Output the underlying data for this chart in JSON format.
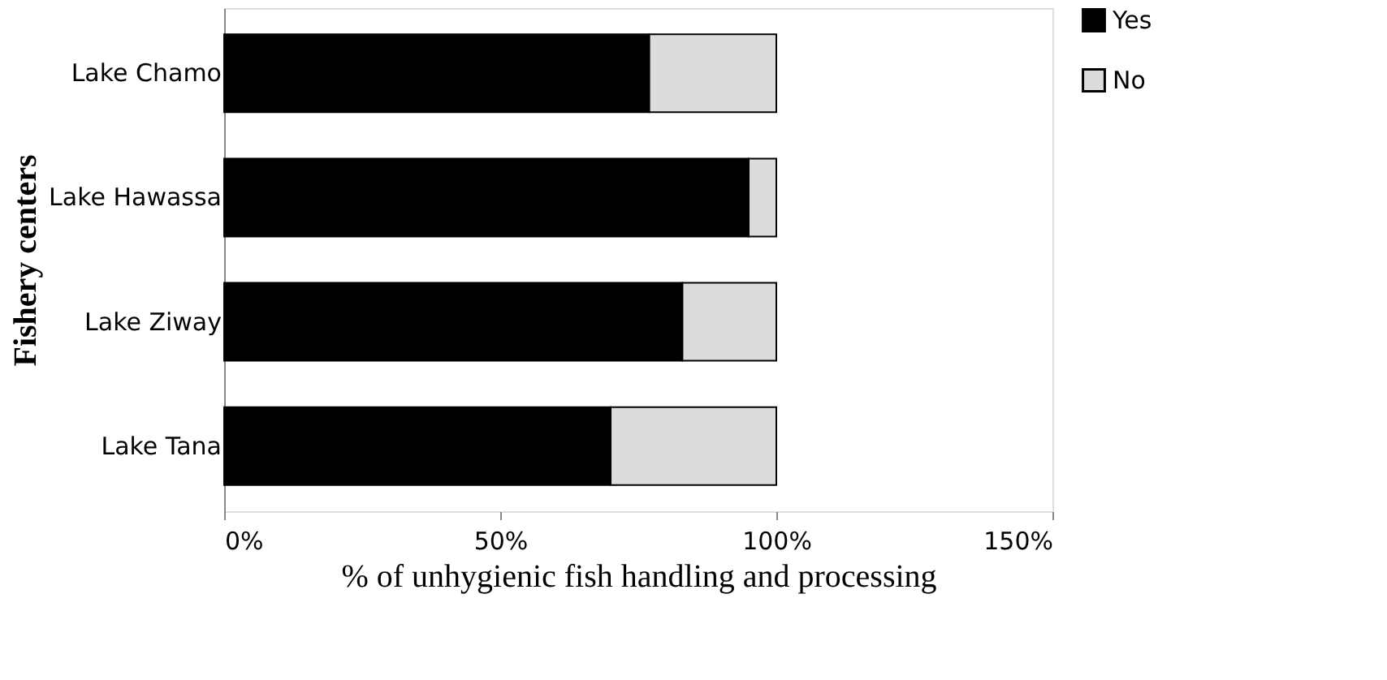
{
  "chart_data": {
    "type": "bar",
    "orientation": "horizontal",
    "stacked": true,
    "xlabel": "% of unhygienic fish handling and processing",
    "ylabel": "Fishery centers",
    "categories": [
      "Lake Chamo",
      "Lake Hawassa",
      "Lake Ziway",
      "Lake Tana"
    ],
    "series": [
      {
        "name": "Yes",
        "color": "#000000",
        "values": [
          77,
          95,
          83,
          70
        ]
      },
      {
        "name": "No",
        "color": "#dcdcdc",
        "values": [
          23,
          5,
          17,
          30
        ]
      }
    ],
    "xlim": [
      0,
      150
    ],
    "xticks": [
      {
        "value": 0,
        "label": "0%"
      },
      {
        "value": 50,
        "label": "50%"
      },
      {
        "value": 100,
        "label": "100%"
      },
      {
        "value": 150,
        "label": "150%"
      }
    ],
    "grid": false,
    "legend": "right"
  }
}
